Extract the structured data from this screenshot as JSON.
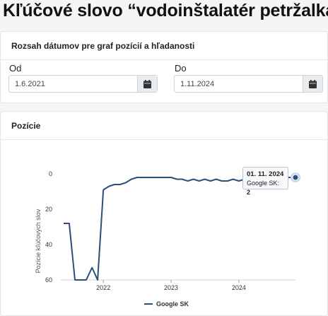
{
  "page": {
    "title": "Kľúčové slovo “vodoinštalatér petržalka”"
  },
  "date_range": {
    "header": "Rozsah dátumov pre graf pozícií a hľadanosti",
    "from": {
      "label": "Od",
      "value": "1.6.2021",
      "icon": "calendar-icon"
    },
    "to": {
      "label": "Do",
      "value": "1.11.2024",
      "icon": "calendar-icon"
    }
  },
  "positions": {
    "header": "Pozície",
    "tooltip": {
      "date": "01. 11. 2024",
      "series": "Google SK",
      "sep": ": ",
      "value": "2"
    }
  },
  "chart_data": {
    "type": "line",
    "ylabel": "Pozície kľúčových slov",
    "y_reversed": true,
    "ylim": [
      0,
      60
    ],
    "y_ticks": [
      0,
      20,
      40,
      60
    ],
    "x_ticks": [
      "2022",
      "2023",
      "2024"
    ],
    "xlim": [
      "2021-06-01",
      "2024-11-01"
    ],
    "legend": "bottom-center",
    "series": [
      {
        "name": "Google SK",
        "color": "#2c4f7c",
        "points": [
          [
            "2021-06-01",
            28
          ],
          [
            "2021-07-01",
            28
          ],
          [
            "2021-08-01",
            60
          ],
          [
            "2021-09-01",
            60
          ],
          [
            "2021-10-01",
            60
          ],
          [
            "2021-11-01",
            53
          ],
          [
            "2021-12-01",
            60
          ],
          [
            "2022-01-01",
            9
          ],
          [
            "2022-02-01",
            7
          ],
          [
            "2022-03-01",
            6
          ],
          [
            "2022-04-01",
            6
          ],
          [
            "2022-05-01",
            5
          ],
          [
            "2022-06-01",
            3
          ],
          [
            "2022-07-01",
            2
          ],
          [
            "2022-08-01",
            2
          ],
          [
            "2022-09-01",
            2
          ],
          [
            "2022-10-01",
            2
          ],
          [
            "2022-11-01",
            2
          ],
          [
            "2022-12-01",
            2
          ],
          [
            "2023-01-01",
            2
          ],
          [
            "2023-02-01",
            3
          ],
          [
            "2023-03-01",
            3
          ],
          [
            "2023-04-01",
            4
          ],
          [
            "2023-05-01",
            3
          ],
          [
            "2023-06-01",
            4
          ],
          [
            "2023-07-01",
            3
          ],
          [
            "2023-08-01",
            4
          ],
          [
            "2023-09-01",
            3
          ],
          [
            "2023-10-01",
            4
          ],
          [
            "2023-11-01",
            4
          ],
          [
            "2023-12-01",
            3
          ],
          [
            "2024-01-01",
            4
          ],
          [
            "2024-02-01",
            3
          ],
          [
            "2024-03-01",
            3
          ],
          [
            "2024-04-01",
            3
          ],
          [
            "2024-05-01",
            3
          ],
          [
            "2024-06-01",
            2
          ],
          [
            "2024-07-01",
            2
          ],
          [
            "2024-08-01",
            2
          ],
          [
            "2024-09-01",
            2
          ],
          [
            "2024-10-01",
            2
          ],
          [
            "2024-11-01",
            2
          ]
        ]
      }
    ]
  }
}
